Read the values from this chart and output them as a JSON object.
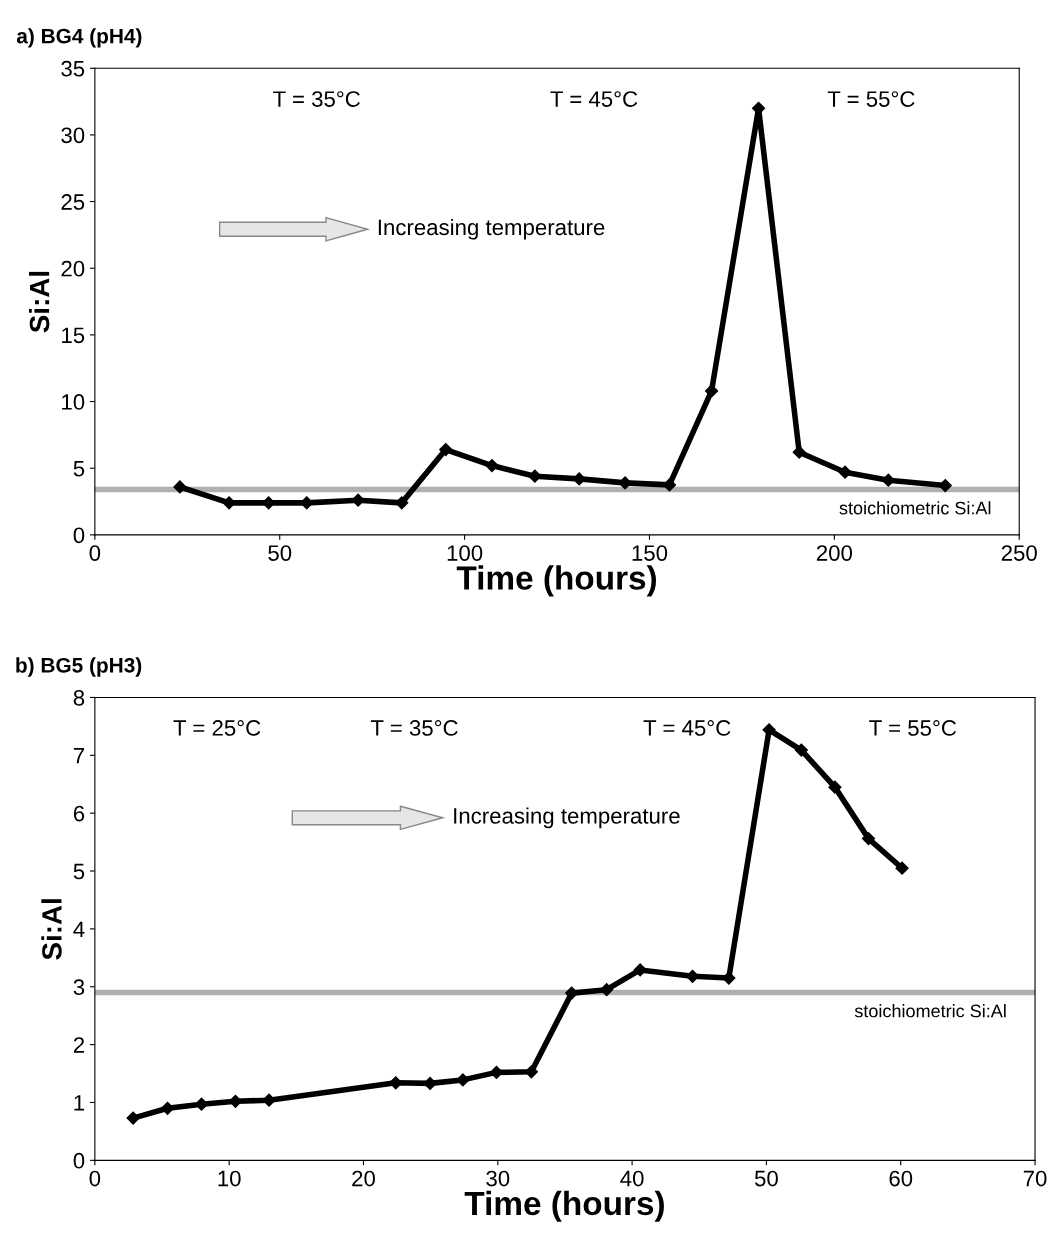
{
  "chart_data": [
    {
      "type": "line",
      "title": "a) BG4 (pH4)",
      "xlabel": "Time (hours)",
      "ylabel": "Si:Al",
      "x": [
        23,
        36.3,
        47,
        57.3,
        71.2,
        83,
        94.9,
        107.4,
        119,
        131,
        143.4,
        155.4,
        166.8,
        179.5,
        190.5,
        202.9,
        214.6,
        230
      ],
      "series": [
        {
          "color": "#000000",
          "values": [
            3.6,
            2.4,
            2.4,
            2.4,
            2.6,
            2.4,
            6.4,
            5.2,
            4.4,
            4.2,
            3.9,
            3.75,
            10.8,
            32.0,
            6.2,
            4.7,
            4.1,
            3.7
          ]
        }
      ],
      "xlim": [
        0,
        250
      ],
      "xticks": [
        0,
        50,
        100,
        150,
        200,
        250
      ],
      "ylim": [
        0,
        35
      ],
      "yticks": [
        0,
        5,
        10,
        15,
        20,
        25,
        30,
        35
      ],
      "marker": "diamond",
      "line_style": "solid",
      "grid": false,
      "legend": false,
      "ref_lines": [
        {
          "axis": "y",
          "value": 3.4,
          "label": "stoichiometric Si:Al",
          "color": "#b0b0b0"
        }
      ],
      "annotations": [
        "T = 35°C",
        "T = 45°C",
        "T = 55°C",
        "Increasing temperature"
      ]
    },
    {
      "type": "line",
      "title": "b) BG5 (pH3)",
      "xlabel": "Time (hours)",
      "ylabel": "Si:Al",
      "x": [
        2.85,
        5.41,
        7.94,
        10.47,
        12.97,
        22.4,
        24.96,
        27.4,
        29.9,
        32.5,
        35.5,
        38.1,
        40.6,
        44.5,
        47.2,
        50.2,
        52.6,
        55.1,
        57.6,
        60.1
      ],
      "series": [
        {
          "color": "#000000",
          "values": [
            0.73,
            0.9,
            0.97,
            1.02,
            1.04,
            1.34,
            1.33,
            1.39,
            1.52,
            1.53,
            2.89,
            2.95,
            3.29,
            3.18,
            3.15,
            7.44,
            7.09,
            6.45,
            5.56,
            5.05
          ]
        }
      ],
      "xlim": [
        0,
        70
      ],
      "xticks": [
        0,
        10,
        20,
        30,
        40,
        50,
        60,
        70
      ],
      "ylim": [
        0,
        8
      ],
      "yticks": [
        0,
        1,
        2,
        3,
        4,
        5,
        6,
        7,
        8
      ],
      "marker": "diamond",
      "line_style": "solid",
      "grid": false,
      "legend": false,
      "ref_lines": [
        {
          "axis": "y",
          "value": 2.9,
          "label": "stoichiometric Si:Al",
          "color": "#b0b0b0"
        }
      ],
      "annotations": [
        "T = 25°C",
        "T = 35°C",
        "T = 45°C",
        "T = 55°C",
        "Increasing temperature"
      ]
    }
  ]
}
